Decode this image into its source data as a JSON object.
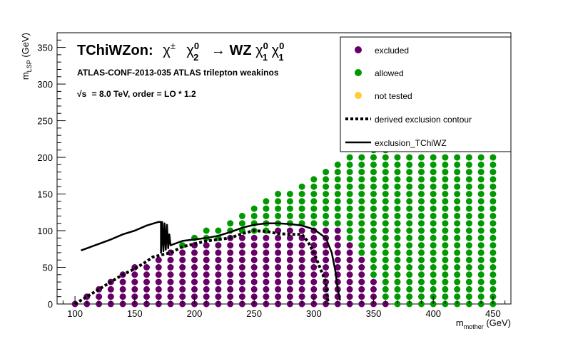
{
  "chart_data": {
    "type": "scatter",
    "title": {
      "lead": "TChiWZon:",
      "decay": "→ WZ",
      "chi": "χ",
      "pm": "±",
      "neutralino_sup": "0",
      "neutralino_sub": "2",
      "lsp_sup": "0",
      "lsp_sub": "1"
    },
    "subtitle": "ATLAS-CONF-2013-035  ATLAS trilepton weakinos",
    "energy_line": {
      "sqrt": "√s",
      "rest": "=  8.0 TeV, order =  LO * 1.2"
    },
    "xlabel": {
      "main": "m",
      "sub": "mother",
      "unit": " (GeV)"
    },
    "ylabel": {
      "main": "m",
      "sub": "LSP",
      "unit": " (GeV)"
    },
    "xlim": [
      85,
      465
    ],
    "ylim": [
      0,
      370
    ],
    "xticks": [
      100,
      150,
      200,
      250,
      300,
      350,
      400,
      450
    ],
    "yticks": [
      0,
      50,
      100,
      150,
      200,
      250,
      300,
      350
    ],
    "grid": false,
    "legend_position": "top-right",
    "legend": [
      {
        "label": "excluded",
        "kind": "marker",
        "color": "#660066"
      },
      {
        "label": "allowed",
        "kind": "marker",
        "color": "#009900"
      },
      {
        "label": "not tested",
        "kind": "marker",
        "color": "#ffcc33"
      },
      {
        "label": "derived exclusion contour",
        "kind": "dotted-line",
        "color": "#000000"
      },
      {
        "label": "exclusion_TChiWZ",
        "kind": "solid-line",
        "color": "#000000"
      }
    ],
    "point_grid": {
      "x_start": 100,
      "x_step": 10,
      "x_end": 450,
      "y_step": 10,
      "max_y": [
        0,
        10,
        20,
        30,
        40,
        50,
        50,
        60,
        70,
        80,
        90,
        100,
        100,
        110,
        120,
        130,
        140,
        150,
        150,
        160,
        170,
        180,
        190,
        200,
        200,
        210,
        220,
        200,
        200,
        200,
        200,
        200,
        200,
        200,
        200,
        200
      ],
      "excluded_max_y": [
        0,
        10,
        20,
        30,
        40,
        50,
        50,
        60,
        70,
        70,
        80,
        80,
        80,
        90,
        90,
        90,
        90,
        100,
        100,
        100,
        100,
        100,
        100,
        80,
        60,
        30,
        0,
        null,
        null,
        null,
        null,
        null,
        null,
        null,
        null,
        null
      ]
    },
    "series": [
      {
        "name": "derived exclusion contour",
        "style": "dotted",
        "color": "#000000",
        "points": [
          [
            100,
            0
          ],
          [
            110,
            10
          ],
          [
            120,
            20
          ],
          [
            130,
            30
          ],
          [
            140,
            40
          ],
          [
            150,
            48
          ],
          [
            160,
            58
          ],
          [
            165,
            64
          ],
          [
            180,
            70
          ],
          [
            190,
            78
          ],
          [
            200,
            82
          ],
          [
            210,
            86
          ],
          [
            220,
            88
          ],
          [
            230,
            90
          ],
          [
            240,
            96
          ],
          [
            250,
            100
          ],
          [
            260,
            99
          ],
          [
            270,
            96
          ],
          [
            280,
            95
          ],
          [
            290,
            95
          ],
          [
            295,
            85
          ],
          [
            300,
            70
          ],
          [
            305,
            50
          ],
          [
            310,
            30
          ],
          [
            312,
            0
          ]
        ]
      },
      {
        "name": "exclusion_TChiWZ",
        "style": "solid",
        "color": "#000000",
        "points": [
          [
            105,
            73
          ],
          [
            120,
            82
          ],
          [
            130,
            88
          ],
          [
            140,
            95
          ],
          [
            150,
            100
          ],
          [
            160,
            107
          ],
          [
            170,
            112
          ],
          [
            172,
            112
          ],
          [
            172,
            70
          ],
          [
            173,
            112
          ],
          [
            174,
            72
          ],
          [
            175,
            110
          ],
          [
            176,
            74
          ],
          [
            177,
            108
          ],
          [
            178,
            76
          ],
          [
            179,
            95
          ],
          [
            180,
            80
          ],
          [
            190,
            86
          ],
          [
            200,
            88
          ],
          [
            210,
            90
          ],
          [
            220,
            93
          ],
          [
            230,
            98
          ],
          [
            240,
            104
          ],
          [
            250,
            108
          ],
          [
            260,
            110
          ],
          [
            270,
            110
          ],
          [
            280,
            109
          ],
          [
            290,
            107
          ],
          [
            300,
            102
          ],
          [
            310,
            90
          ],
          [
            315,
            70
          ],
          [
            318,
            45
          ],
          [
            320,
            20
          ],
          [
            322,
            5
          ]
        ]
      }
    ]
  }
}
